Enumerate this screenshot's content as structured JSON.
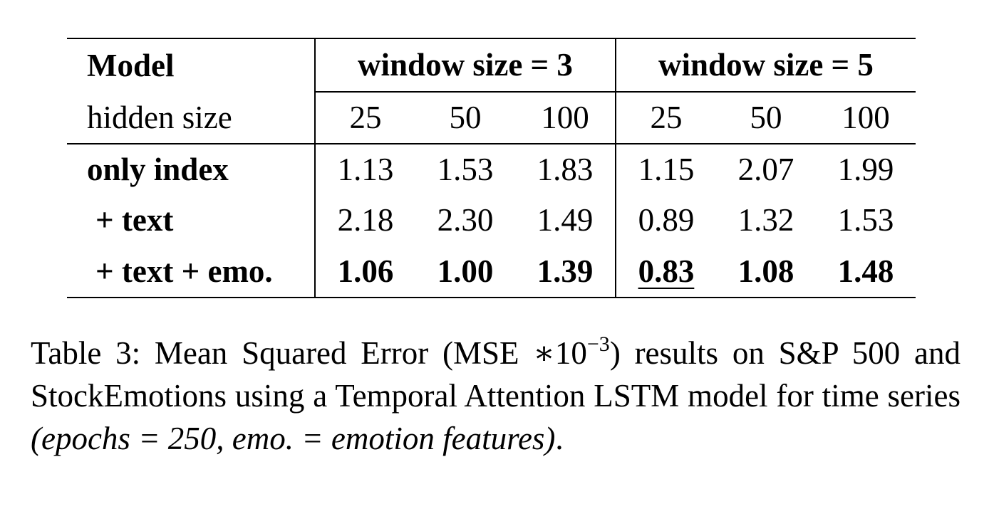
{
  "table": {
    "header": {
      "model_label": "Model",
      "groups": [
        "window size = 3",
        "window size = 5"
      ],
      "hidden_label": "hidden size",
      "hidden_sizes": [
        "25",
        "50",
        "100",
        "25",
        "50",
        "100"
      ]
    },
    "rows": [
      {
        "label": "only index",
        "values": [
          "1.13",
          "1.53",
          "1.83",
          "1.15",
          "2.07",
          "1.99"
        ]
      },
      {
        "label": "+ text",
        "values": [
          "2.18",
          "2.30",
          "1.49",
          "0.89",
          "1.32",
          "1.53"
        ]
      },
      {
        "label": "+ text + emo.",
        "values": [
          "1.06",
          "1.00",
          "1.39",
          "0.83",
          "1.08",
          "1.48"
        ]
      }
    ]
  },
  "caption": {
    "lead": "Table 3: Mean Squared Error (MSE ∗10",
    "exponent": "−3",
    "middle": ") results on S&P 500 and StockEmotions using a Temporal Attention LSTM model for time series ",
    "italic": "(epochs = 250, emo. = emotion features)",
    "tail": "."
  }
}
